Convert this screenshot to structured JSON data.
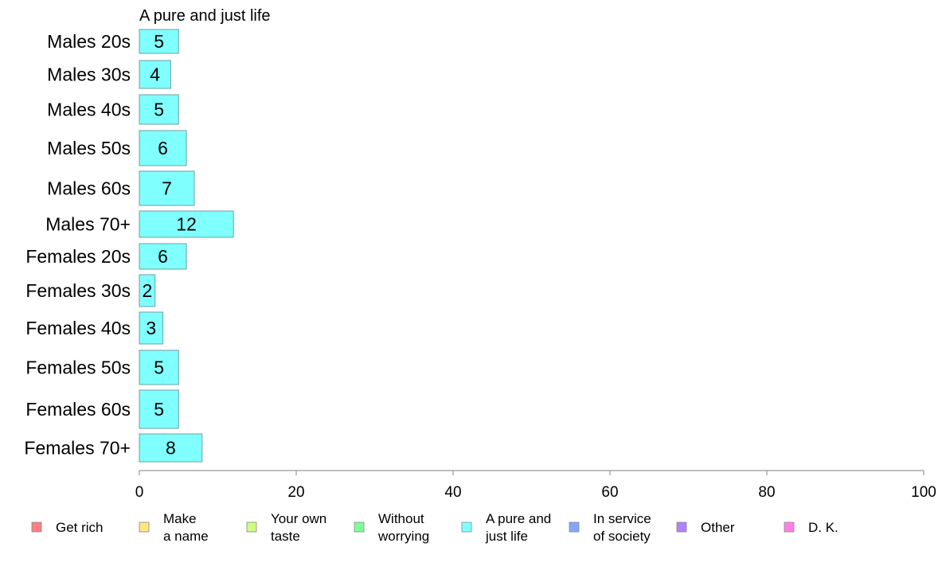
{
  "chart_data": {
    "type": "bar",
    "orientation": "horizontal",
    "title": "A pure and just life",
    "categories": [
      "Males 20s",
      "Males 30s",
      "Males 40s",
      "Males 50s",
      "Males 60s",
      "Males 70+",
      "Females 20s",
      "Females 30s",
      "Females 40s",
      "Females 50s",
      "Females 60s",
      "Females 70+"
    ],
    "values": [
      5,
      4,
      5,
      6,
      7,
      12,
      6,
      2,
      3,
      5,
      5,
      8
    ],
    "xlim": [
      0,
      100
    ],
    "xticks": [
      "0",
      "20",
      "40",
      "60",
      "80",
      "100"
    ],
    "grid": false,
    "bar_color": "#80ffff",
    "legend": {
      "position": "bottom",
      "items": [
        {
          "label": "Get rich",
          "color": "#ff8080"
        },
        {
          "label": "Make a name",
          "color": "#ffe680"
        },
        {
          "label": "Your own taste",
          "color": "#ccff80"
        },
        {
          "label": "Without worrying",
          "color": "#80ff99"
        },
        {
          "label": "A pure and just life",
          "color": "#80ffff"
        },
        {
          "label": "In service of society",
          "color": "#80a8ff"
        },
        {
          "label": "Other",
          "color": "#b380ff"
        },
        {
          "label": "D. K.",
          "color": "#ff80e6"
        }
      ]
    }
  }
}
